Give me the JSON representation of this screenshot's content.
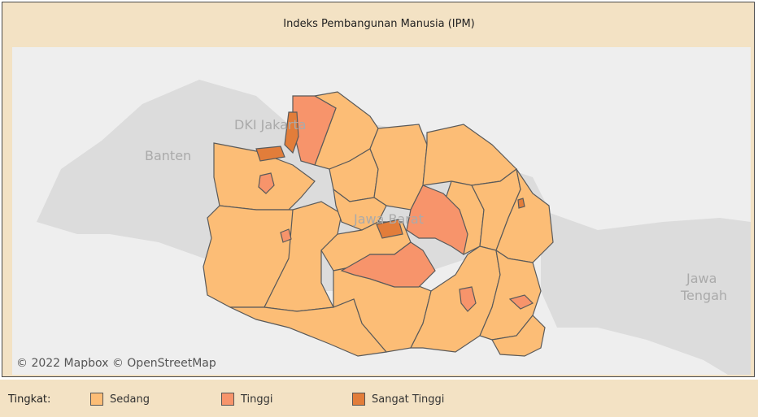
{
  "title": "Indeks Pembangunan Manusia (IPM)",
  "map": {
    "attribution": "© 2022 Mapbox  © OpenStreetMap",
    "place_labels": {
      "jakarta": "DKI Jakarta",
      "banten": "Banten",
      "jawa_barat": "Jawa Barat",
      "jawa_tengah_line1": "Jawa",
      "jawa_tengah_line2": "Tengah"
    },
    "colors": {
      "sedang": "#fcbd76",
      "tinggi": "#f7946b",
      "sangat_tinggi": "#e27d3a",
      "background": "#eeeeee",
      "land": "#dcdcdc",
      "border": "#5a5a5a"
    }
  },
  "legend": {
    "title": "Tingkat:",
    "items": [
      {
        "label": "Sedang",
        "color": "#fcbd76"
      },
      {
        "label": "Tinggi",
        "color": "#f7946b"
      },
      {
        "label": "Sangat Tinggi",
        "color": "#e27d3a"
      }
    ]
  }
}
